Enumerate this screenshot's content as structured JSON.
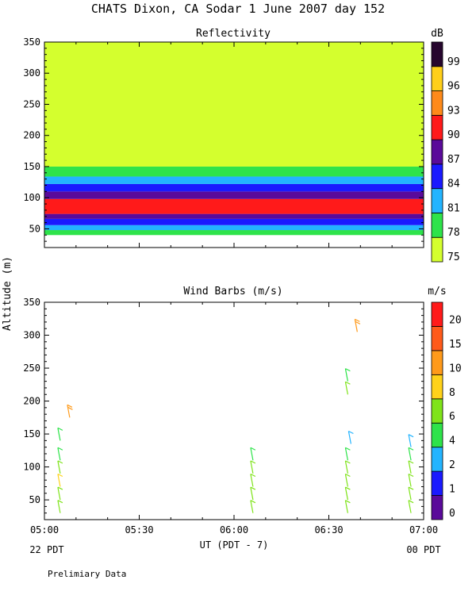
{
  "title": "CHATS Dixon, CA  Sodar    1 June 2007   day 152",
  "footnote": "Prelimiary Data",
  "ylabel": "Altitude (m)",
  "xlabel": "UT (PDT - 7)",
  "x_start_label": "22 PDT",
  "x_end_label": "00 PDT",
  "chart_data": [
    {
      "type": "heatmap",
      "title": "Reflectivity",
      "colorbar_unit": "dB",
      "x_ticks": [
        "05:00",
        "05:30",
        "06:00",
        "06:30",
        "07:00"
      ],
      "xlim": [
        "05:00",
        "07:00"
      ],
      "ylim": [
        20,
        350
      ],
      "y_ticks": [
        50,
        100,
        150,
        200,
        250,
        300,
        350
      ],
      "levels": [
        75,
        78,
        81,
        84,
        87,
        90,
        93,
        96,
        99
      ],
      "level_colors": [
        "#d4ff2e",
        "#2ee34a",
        "#23b4ff",
        "#1a1aff",
        "#5a0a9a",
        "#ff1a1a",
        "#ff8a1a",
        "#ffcf1a",
        "#26062e"
      ],
      "blank_color": "#ffffff",
      "layers": [
        {
          "band_m": [
            40,
            48
          ],
          "level_db": 78
        },
        {
          "band_m": [
            48,
            56
          ],
          "level_db": 81
        },
        {
          "band_m": [
            56,
            66
          ],
          "level_db": 84
        },
        {
          "band_m": [
            66,
            74
          ],
          "level_db": 87
        },
        {
          "band_m": [
            74,
            98
          ],
          "level_db": 90
        },
        {
          "band_m": [
            98,
            110
          ],
          "level_db": 87
        },
        {
          "band_m": [
            110,
            122
          ],
          "level_db": 84
        },
        {
          "band_m": [
            122,
            134
          ],
          "level_db": 81
        },
        {
          "band_m": [
            134,
            150
          ],
          "level_db": 78
        },
        {
          "band_m": [
            150,
            350
          ],
          "level_db": 75
        }
      ]
    },
    {
      "type": "scatter",
      "title": "Wind Barbs (m/s)",
      "colorbar_unit": "m/s",
      "x_ticks": [
        "05:00",
        "05:30",
        "06:00",
        "06:30",
        "07:00"
      ],
      "xlim": [
        "05:00",
        "07:00"
      ],
      "ylim": [
        20,
        350
      ],
      "y_ticks": [
        50,
        100,
        150,
        200,
        250,
        300,
        350
      ],
      "speed_levels": [
        0,
        1,
        2,
        4,
        6,
        8,
        10,
        15,
        20
      ],
      "speed_colors": [
        "#5a0a9a",
        "#1a1aff",
        "#23b4ff",
        "#2ee34a",
        "#7fe31a",
        "#ffd21a",
        "#ff9a1a",
        "#ff5a1a",
        "#ff1a1a"
      ],
      "barbs": [
        {
          "time": "05:05",
          "alt_m": 30,
          "speed_ms": 6
        },
        {
          "time": "05:05",
          "alt_m": 50,
          "speed_ms": 6
        },
        {
          "time": "05:05",
          "alt_m": 70,
          "speed_ms": 8
        },
        {
          "time": "05:05",
          "alt_m": 90,
          "speed_ms": 6
        },
        {
          "time": "05:05",
          "alt_m": 110,
          "speed_ms": 4
        },
        {
          "time": "05:05",
          "alt_m": 140,
          "speed_ms": 4
        },
        {
          "time": "05:08",
          "alt_m": 175,
          "speed_ms": 10
        },
        {
          "time": "06:06",
          "alt_m": 30,
          "speed_ms": 6
        },
        {
          "time": "06:06",
          "alt_m": 50,
          "speed_ms": 6
        },
        {
          "time": "06:06",
          "alt_m": 70,
          "speed_ms": 6
        },
        {
          "time": "06:06",
          "alt_m": 90,
          "speed_ms": 6
        },
        {
          "time": "06:06",
          "alt_m": 110,
          "speed_ms": 4
        },
        {
          "time": "06:36",
          "alt_m": 30,
          "speed_ms": 6
        },
        {
          "time": "06:36",
          "alt_m": 50,
          "speed_ms": 6
        },
        {
          "time": "06:36",
          "alt_m": 70,
          "speed_ms": 6
        },
        {
          "time": "06:36",
          "alt_m": 90,
          "speed_ms": 6
        },
        {
          "time": "06:36",
          "alt_m": 110,
          "speed_ms": 4
        },
        {
          "time": "06:37",
          "alt_m": 135,
          "speed_ms": 2
        },
        {
          "time": "06:36",
          "alt_m": 210,
          "speed_ms": 6
        },
        {
          "time": "06:36",
          "alt_m": 230,
          "speed_ms": 4
        },
        {
          "time": "06:39",
          "alt_m": 305,
          "speed_ms": 10
        },
        {
          "time": "06:56",
          "alt_m": 30,
          "speed_ms": 6
        },
        {
          "time": "06:56",
          "alt_m": 50,
          "speed_ms": 6
        },
        {
          "time": "06:56",
          "alt_m": 70,
          "speed_ms": 6
        },
        {
          "time": "06:56",
          "alt_m": 90,
          "speed_ms": 6
        },
        {
          "time": "06:56",
          "alt_m": 110,
          "speed_ms": 4
        },
        {
          "time": "06:56",
          "alt_m": 130,
          "speed_ms": 2
        }
      ]
    }
  ]
}
